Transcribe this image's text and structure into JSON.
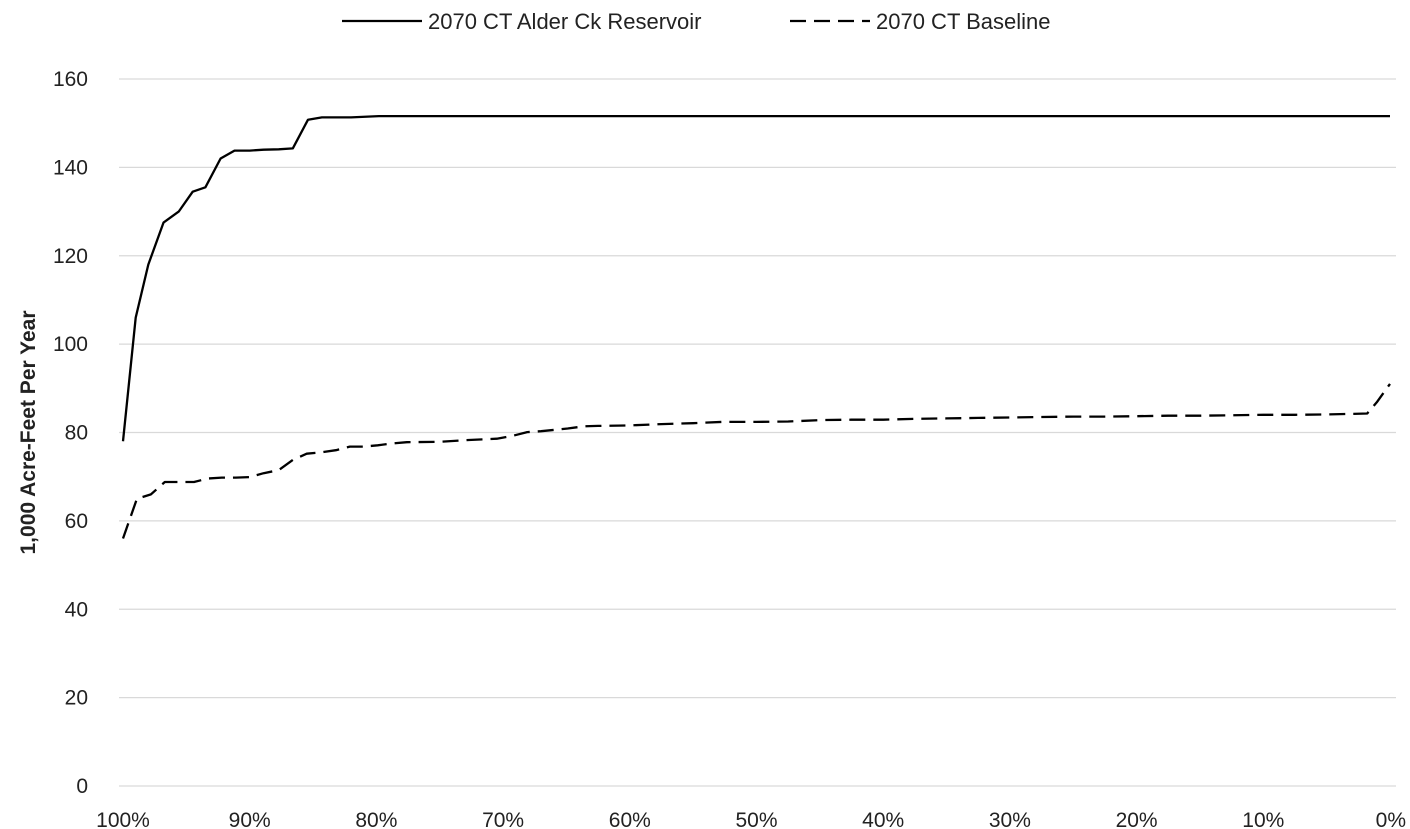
{
  "chart_data": {
    "type": "line",
    "title": "",
    "xlabel": "",
    "ylabel": "1,000  Acre-Feet Per Year",
    "xlim": [
      100,
      0
    ],
    "ylim": [
      0,
      160
    ],
    "x_ticks": [
      "100%",
      "90%",
      "80%",
      "70%",
      "60%",
      "50%",
      "40%",
      "30%",
      "20%",
      "10%",
      "0%"
    ],
    "y_ticks": [
      "0",
      "20",
      "40",
      "60",
      "80",
      "100",
      "120",
      "140",
      "160"
    ],
    "grid": "horizontal",
    "legend_position": "top",
    "colors": {
      "line": "#000000",
      "grid": "#d9d9d9"
    },
    "series": [
      {
        "name": "2070 CT Alder Ck Reservoir",
        "style": "solid",
        "points": [
          [
            100,
            78
          ],
          [
            99,
            106
          ],
          [
            98,
            118
          ],
          [
            96.8,
            127.5
          ],
          [
            95.6,
            130
          ],
          [
            94.5,
            134.5
          ],
          [
            93.5,
            135.5
          ],
          [
            92.3,
            142
          ],
          [
            91.2,
            143.8
          ],
          [
            90,
            143.8
          ],
          [
            88.9,
            144
          ],
          [
            87.7,
            144.1
          ],
          [
            86.6,
            144.3
          ],
          [
            85.4,
            150.8
          ],
          [
            84.3,
            151.3
          ],
          [
            82,
            151.3
          ],
          [
            79.8,
            151.6
          ],
          [
            0,
            151.6
          ]
        ]
      },
      {
        "name": "2070 CT Baseline",
        "style": "dashed",
        "points": [
          [
            100,
            56
          ],
          [
            98.9,
            65
          ],
          [
            97.8,
            66
          ],
          [
            96.7,
            68.8
          ],
          [
            95.5,
            68.8
          ],
          [
            94.4,
            68.8
          ],
          [
            93.3,
            69.6
          ],
          [
            92.2,
            69.8
          ],
          [
            91.1,
            69.8
          ],
          [
            90,
            69.9
          ],
          [
            88.9,
            70.8
          ],
          [
            87.7,
            71.5
          ],
          [
            86.6,
            73.8
          ],
          [
            85.5,
            75.2
          ],
          [
            84.4,
            75.5
          ],
          [
            83.2,
            76
          ],
          [
            82.1,
            76.8
          ],
          [
            81,
            76.8
          ],
          [
            79.9,
            77.1
          ],
          [
            78.8,
            77.5
          ],
          [
            77.6,
            77.8
          ],
          [
            75,
            77.9
          ],
          [
            72.7,
            78.3
          ],
          [
            70.5,
            78.6
          ],
          [
            69.3,
            79.2
          ],
          [
            68.1,
            80.1
          ],
          [
            67,
            80.3
          ],
          [
            64.9,
            80.9
          ],
          [
            63.6,
            81.4
          ],
          [
            62.5,
            81.5
          ],
          [
            60,
            81.6
          ],
          [
            57.5,
            81.9
          ],
          [
            55,
            82.1
          ],
          [
            52.7,
            82.4
          ],
          [
            50,
            82.4
          ],
          [
            47.5,
            82.5
          ],
          [
            45,
            82.8
          ],
          [
            42.5,
            82.9
          ],
          [
            40,
            82.9
          ],
          [
            37.5,
            83.1
          ],
          [
            35,
            83.2
          ],
          [
            32.5,
            83.3
          ],
          [
            30,
            83.4
          ],
          [
            27.5,
            83.5
          ],
          [
            25,
            83.6
          ],
          [
            22.5,
            83.6
          ],
          [
            20,
            83.7
          ],
          [
            17.5,
            83.8
          ],
          [
            15,
            83.8
          ],
          [
            12.5,
            83.9
          ],
          [
            10,
            84
          ],
          [
            7.5,
            84
          ],
          [
            5,
            84.1
          ],
          [
            3,
            84.2
          ],
          [
            1.8,
            84.3
          ],
          [
            1,
            87
          ],
          [
            0,
            91
          ]
        ]
      }
    ]
  }
}
